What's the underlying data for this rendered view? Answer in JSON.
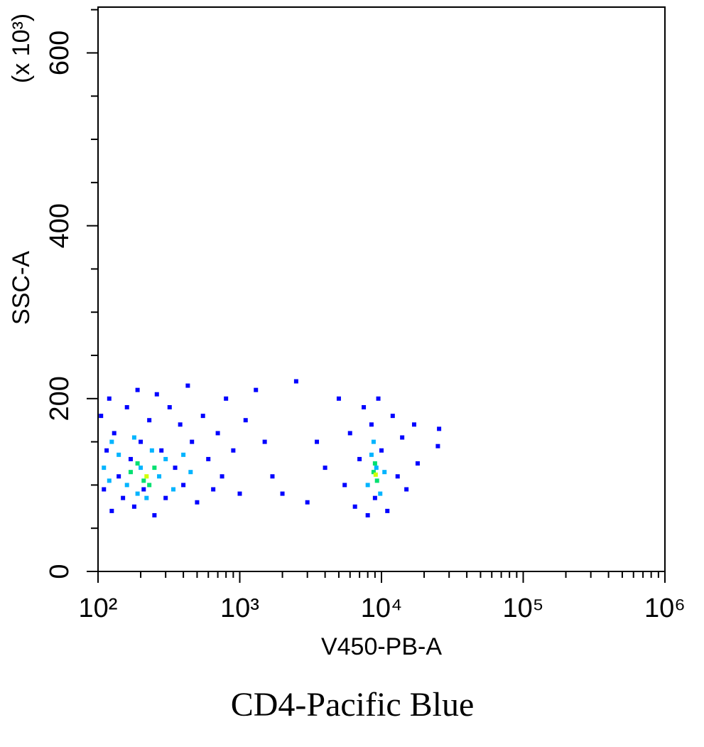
{
  "chart_data": {
    "type": "scatter",
    "caption": "CD4-Pacific Blue",
    "x_label": "V450-PB-A",
    "y_label": "SSC-A",
    "y_multiplier": "(x 10³)",
    "x_log": true,
    "xlim": [
      100,
      1000000
    ],
    "xticks": [
      {
        "value": 100,
        "label": "10²"
      },
      {
        "value": 1000,
        "label": "10³"
      },
      {
        "value": 10000,
        "label": "10⁴"
      },
      {
        "value": 100000,
        "label": "10⁵"
      },
      {
        "value": 1000000,
        "label": "10⁶"
      }
    ],
    "xminor_ticks": [
      200,
      300,
      400,
      500,
      600,
      700,
      800,
      900,
      2000,
      3000,
      4000,
      5000,
      6000,
      7000,
      8000,
      9000,
      20000,
      30000,
      40000,
      50000,
      60000,
      70000,
      80000,
      90000,
      200000,
      300000,
      400000,
      500000,
      600000,
      700000,
      800000,
      900000
    ],
    "ylim": [
      0,
      653
    ],
    "yticks": [
      0,
      200,
      400,
      600
    ],
    "yminor_ticks": [
      50,
      100,
      150,
      250,
      300,
      350,
      450,
      500,
      550,
      650
    ],
    "series": [
      {
        "color": "#0000ff",
        "x": [
          105,
          110,
          115,
          120,
          125,
          130,
          140,
          150,
          160,
          170,
          180,
          190,
          200,
          210,
          230,
          250,
          260,
          280,
          300,
          320,
          350,
          380,
          400,
          430,
          460,
          500,
          550,
          600,
          650,
          700,
          750,
          800,
          900,
          1000,
          1100,
          1300,
          1500,
          1700,
          2000,
          2500,
          3000,
          3500,
          4000,
          5000,
          5500,
          6000,
          6500,
          7000,
          7500,
          8000,
          8500,
          9000,
          9500,
          10000,
          11000,
          12000,
          13000,
          14000,
          15000,
          17000,
          18000,
          25000,
          25500
        ],
        "values": [
          180,
          95,
          140,
          200,
          70,
          160,
          110,
          85,
          190,
          130,
          75,
          210,
          150,
          95,
          175,
          65,
          205,
          140,
          85,
          190,
          120,
          170,
          100,
          215,
          150,
          80,
          180,
          130,
          95,
          160,
          110,
          200,
          140,
          90,
          175,
          210,
          150,
          110,
          90,
          220,
          80,
          150,
          120,
          200,
          100,
          160,
          75,
          130,
          190,
          65,
          170,
          85,
          200,
          140,
          70,
          180,
          110,
          155,
          95,
          170,
          125,
          145,
          165
        ]
      },
      {
        "color": "#00b4ff",
        "x": [
          110,
          125,
          140,
          160,
          180,
          200,
          220,
          240,
          270,
          300,
          340,
          400,
          450,
          120,
          190,
          8000,
          8500,
          9200,
          9800,
          10500,
          8800
        ],
        "values": [
          120,
          150,
          135,
          100,
          155,
          120,
          85,
          140,
          110,
          130,
          95,
          135,
          115,
          105,
          90,
          100,
          135,
          120,
          90,
          115,
          150
        ]
      },
      {
        "color": "#00e070",
        "x": [
          170,
          210,
          250,
          230,
          190,
          8800,
          9300,
          9000
        ],
        "values": [
          115,
          105,
          120,
          100,
          125,
          115,
          105,
          125
        ]
      },
      {
        "color": "#d0ff00",
        "x": [
          220,
          9100
        ],
        "values": [
          110,
          112
        ]
      }
    ]
  }
}
